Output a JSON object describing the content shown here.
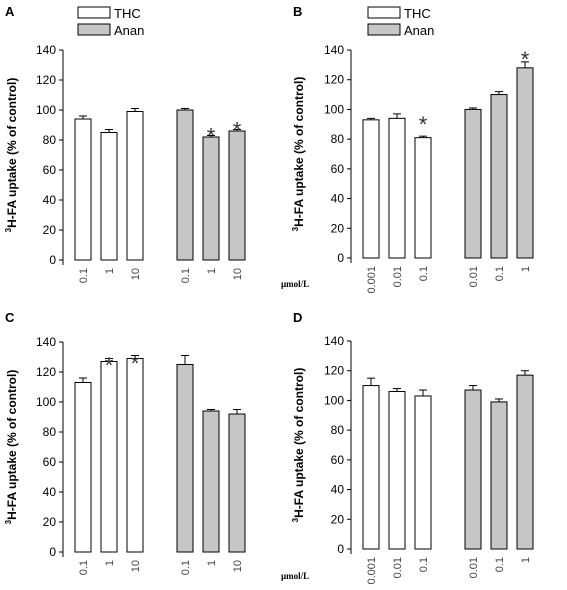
{
  "legend": {
    "thc": "THC",
    "anan": "Anan"
  },
  "colors": {
    "thc": "#ffffff",
    "anan": "#c6c6c6",
    "stroke": "#000000",
    "star": "#333333"
  },
  "chart_data": [
    {
      "panel": "A",
      "type": "bar",
      "ylabel_pre": "3",
      "ylabel": "H-FA uptake (% of control)",
      "unit": "µmol/L",
      "ylim": [
        0,
        140
      ],
      "yticks": [
        0,
        20,
        40,
        60,
        80,
        100,
        120,
        140
      ],
      "legend": "top-left",
      "groups": [
        {
          "name": "THC",
          "categories": [
            "0.1",
            "1",
            "10"
          ],
          "values": [
            94,
            85,
            99
          ],
          "errors": [
            2,
            2,
            2
          ],
          "sig": [
            false,
            false,
            false
          ]
        },
        {
          "name": "Anan",
          "categories": [
            "0.1",
            "1",
            "10"
          ],
          "values": [
            100,
            82,
            86
          ],
          "errors": [
            1,
            1,
            1
          ],
          "sig": [
            false,
            true,
            true
          ]
        }
      ]
    },
    {
      "panel": "B",
      "type": "bar",
      "ylabel_pre": "3",
      "ylabel": "H-FA uptake (% of control)",
      "unit": "µmol/L",
      "ylim": [
        0,
        140
      ],
      "yticks": [
        0,
        20,
        40,
        60,
        80,
        100,
        120,
        140
      ],
      "legend": "top-left",
      "groups": [
        {
          "name": "THC",
          "categories": [
            "0.001",
            "0.01",
            "0.1"
          ],
          "values": [
            93,
            94,
            81
          ],
          "errors": [
            1,
            3,
            1
          ],
          "sig": [
            false,
            false,
            true
          ]
        },
        {
          "name": "Anan",
          "categories": [
            "0.01",
            "0.1",
            "1"
          ],
          "values": [
            100,
            110,
            128
          ],
          "errors": [
            1,
            2,
            4
          ],
          "sig": [
            false,
            false,
            true
          ]
        }
      ]
    },
    {
      "panel": "C",
      "type": "bar",
      "ylabel_pre": "3",
      "ylabel": "H-FA uptake (% of control)",
      "unit": "µmol/L",
      "ylim": [
        0,
        140
      ],
      "yticks": [
        0,
        20,
        40,
        60,
        80,
        100,
        120,
        140
      ],
      "groups": [
        {
          "name": "THC",
          "categories": [
            "0.1",
            "1",
            "10"
          ],
          "values": [
            113,
            127,
            129
          ],
          "errors": [
            3,
            2,
            2
          ],
          "sig": [
            false,
            true,
            true
          ]
        },
        {
          "name": "Anan",
          "categories": [
            "0.1",
            "1",
            "10"
          ],
          "values": [
            125,
            94,
            92
          ],
          "errors": [
            6,
            1,
            3
          ],
          "sig": [
            false,
            false,
            false
          ]
        }
      ]
    },
    {
      "panel": "D",
      "type": "bar",
      "ylabel_pre": "3",
      "ylabel": "H-FA uptake (% of control)",
      "unit": "µmol/L",
      "ylim": [
        0,
        140
      ],
      "yticks": [
        0,
        20,
        40,
        60,
        80,
        100,
        120,
        140
      ],
      "groups": [
        {
          "name": "THC",
          "categories": [
            "0.001",
            "0.01",
            "0.1"
          ],
          "values": [
            110,
            106,
            103
          ],
          "errors": [
            5,
            2,
            4
          ],
          "sig": [
            false,
            false,
            false
          ]
        },
        {
          "name": "Anan",
          "categories": [
            "0.01",
            "0.1",
            "1"
          ],
          "values": [
            107,
            99,
            117
          ],
          "errors": [
            3,
            2,
            3
          ],
          "sig": [
            false,
            false,
            false
          ]
        }
      ]
    }
  ]
}
